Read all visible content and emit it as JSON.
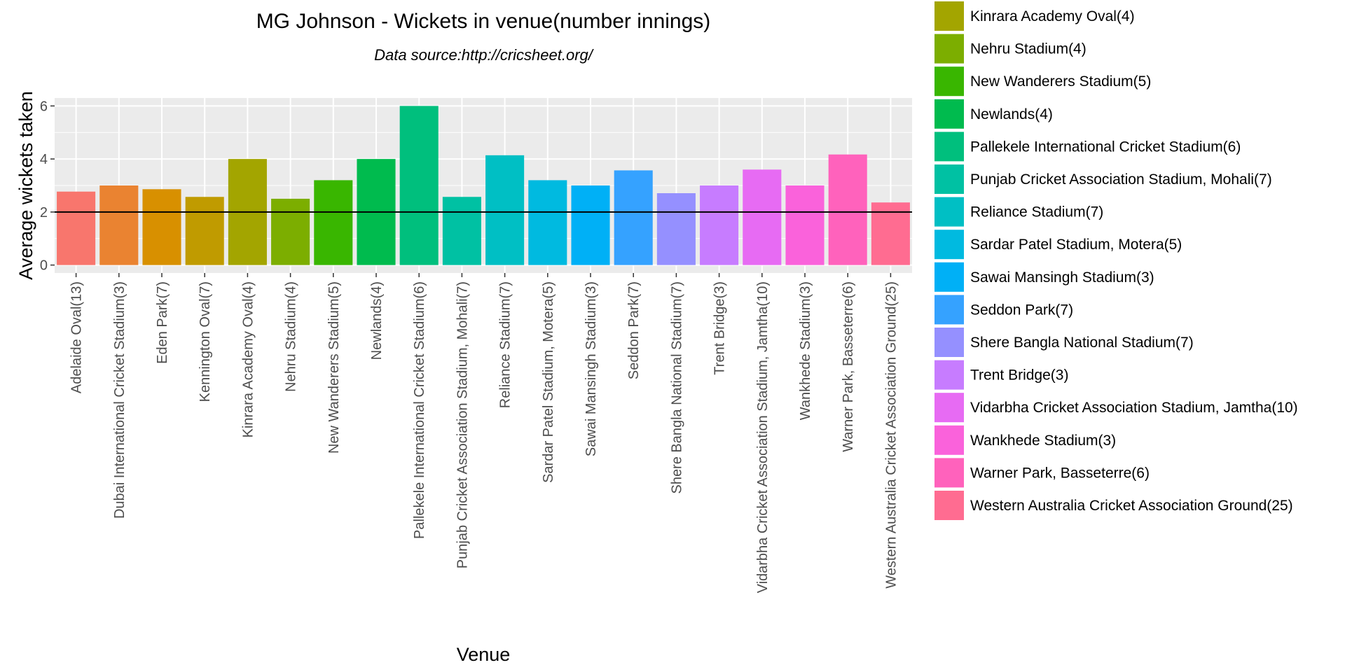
{
  "chart_data": {
    "type": "bar",
    "title": "MG Johnson - Wickets in venue(number innings)",
    "subtitle": "Data source:http://cricsheet.org/",
    "xlabel": "Venue",
    "ylabel": "Average wickets taken",
    "ylim": [
      -0.3,
      6.3
    ],
    "yticks": [
      0,
      2,
      4,
      6
    ],
    "reference_line": 2,
    "grid": true,
    "legend_position": "right",
    "categories": [
      "Adelaide Oval(13)",
      "Dubai International Cricket Stadium(3)",
      "Eden Park(7)",
      "Kennington Oval(7)",
      "Kinrara Academy Oval(4)",
      "Nehru Stadium(4)",
      "New Wanderers Stadium(5)",
      "Newlands(4)",
      "Pallekele International Cricket Stadium(6)",
      "Punjab Cricket Association Stadium, Mohali(7)",
      "Reliance Stadium(7)",
      "Sardar Patel Stadium, Motera(5)",
      "Sawai Mansingh Stadium(3)",
      "Seddon Park(7)",
      "Shere Bangla National Stadium(7)",
      "Trent Bridge(3)",
      "Vidarbha Cricket Association Stadium, Jamtha(10)",
      "Wankhede Stadium(3)",
      "Warner Park, Basseterre(6)",
      "Western Australia Cricket Association Ground(25)"
    ],
    "values": [
      2.77,
      3.0,
      2.86,
      2.57,
      4.0,
      2.5,
      3.2,
      4.0,
      6.0,
      2.57,
      4.14,
      3.2,
      3.0,
      3.57,
      2.71,
      3.0,
      3.6,
      3.0,
      4.17,
      2.36
    ],
    "colors": [
      "#F8766D",
      "#EA8331",
      "#D89000",
      "#C09B00",
      "#A3A500",
      "#7CAE00",
      "#39B600",
      "#00BB4E",
      "#00BF7D",
      "#00C1A3",
      "#00BFC4",
      "#00BAE0",
      "#00B0F6",
      "#35A2FF",
      "#9590FF",
      "#C77CFF",
      "#E76BF3",
      "#FA62DB",
      "#FF62BC",
      "#FF6C91"
    ],
    "legend": [
      "Kinrara Academy Oval(4)",
      "Nehru Stadium(4)",
      "New Wanderers Stadium(5)",
      "Newlands(4)",
      "Pallekele International Cricket Stadium(6)",
      "Punjab Cricket Association Stadium, Mohali(7)",
      "Reliance Stadium(7)",
      "Sardar Patel Stadium, Motera(5)",
      "Sawai Mansingh Stadium(3)",
      "Seddon Park(7)",
      "Shere Bangla National Stadium(7)",
      "Trent Bridge(3)",
      "Vidarbha Cricket Association Stadium, Jamtha(10)",
      "Wankhede Stadium(3)",
      "Warner Park, Basseterre(6)",
      "Western Australia Cricket Association Ground(25)"
    ],
    "legend_colors": [
      "#A3A500",
      "#7CAE00",
      "#39B600",
      "#00BB4E",
      "#00BF7D",
      "#00C1A3",
      "#00BFC4",
      "#00BAE0",
      "#00B0F6",
      "#35A2FF",
      "#9590FF",
      "#C77CFF",
      "#E76BF3",
      "#FA62DB",
      "#FF62BC",
      "#FF6C91"
    ]
  }
}
